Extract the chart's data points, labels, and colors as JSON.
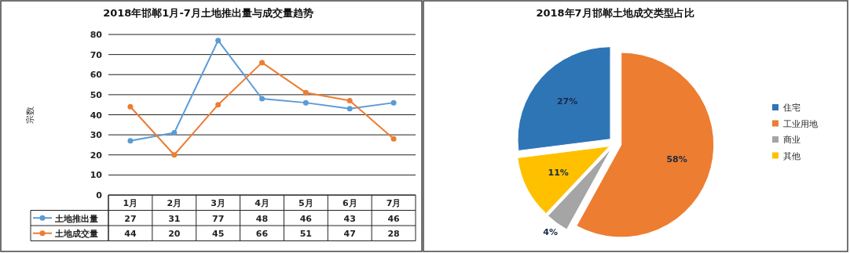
{
  "chart_data": [
    {
      "type": "line",
      "title": "2018年邯郸1月-7月土地推出量与成交量趋势",
      "ylabel": "宗数",
      "categories": [
        "1月",
        "2月",
        "3月",
        "4月",
        "5月",
        "6月",
        "7月"
      ],
      "series": [
        {
          "name": "土地推出量",
          "color": "#5b9bd5",
          "values": [
            27,
            31,
            77,
            48,
            46,
            43,
            46
          ]
        },
        {
          "name": "土地成交量",
          "color": "#ed7d31",
          "values": [
            44,
            20,
            45,
            66,
            51,
            47,
            28
          ]
        }
      ],
      "ylim": [
        0,
        80
      ],
      "yticks": [
        0,
        10,
        20,
        30,
        40,
        50,
        60,
        70,
        80
      ],
      "grid": "y",
      "marker": "circle",
      "data_labels": true,
      "legend": "bottom left"
    },
    {
      "type": "pie",
      "title": "2018年7月邯郸土地成交类型占比",
      "categories": [
        "住宅",
        "工业用地",
        "商业",
        "其他"
      ],
      "values": [
        27,
        58,
        4,
        11
      ],
      "colors": [
        "#2e75b6",
        "#ed7d31",
        "#a5a5a5",
        "#ffc000"
      ],
      "value_labels": [
        "27%",
        "58%",
        "4%",
        "11%"
      ],
      "legend": "right"
    }
  ]
}
